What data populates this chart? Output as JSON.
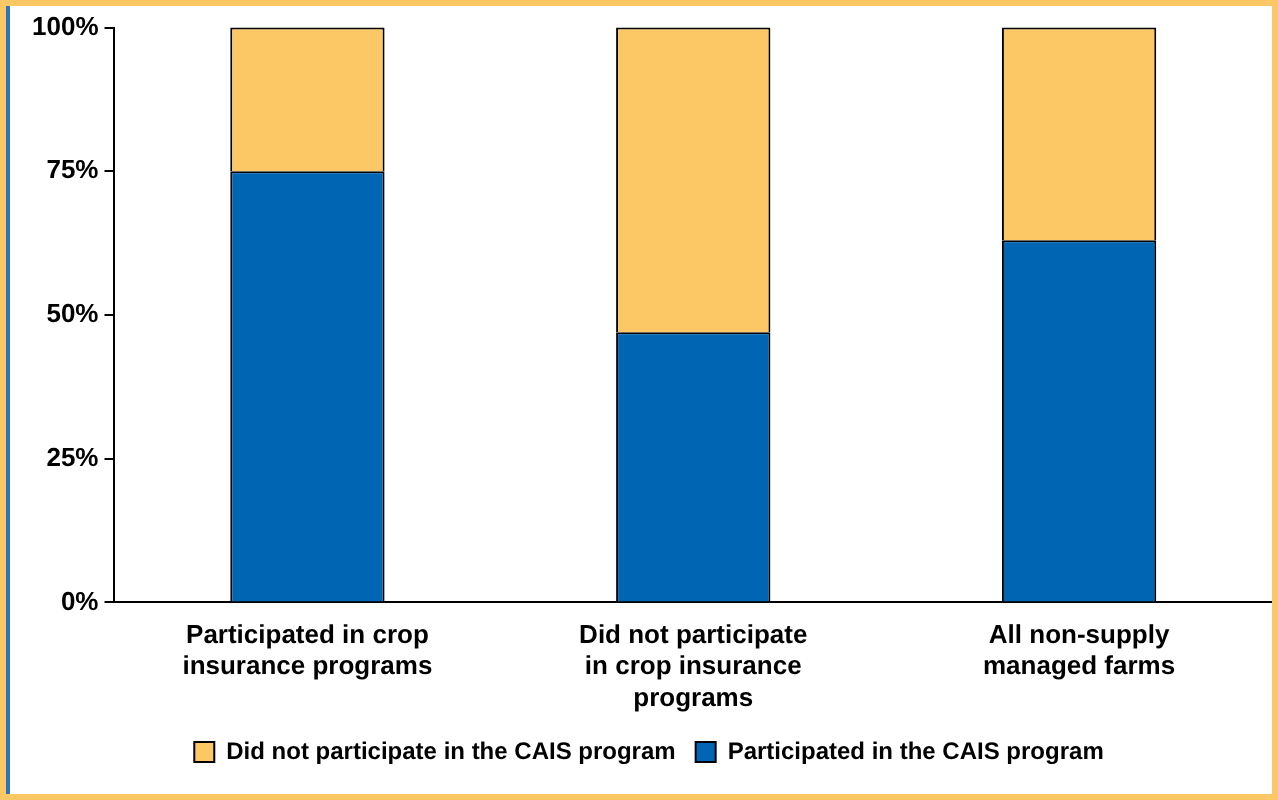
{
  "chart_data": {
    "type": "bar",
    "stacked": true,
    "categories": [
      "Participated in crop insurance programs",
      "Did not participate in crop insurance programs",
      "All non-supply managed farms"
    ],
    "series": [
      {
        "name": "Participated in the CAIS program",
        "color": "#0066b3",
        "values": [
          75,
          47,
          63
        ]
      },
      {
        "name": "Did not participate in the CAIS program",
        "color": "#fcc865",
        "values": [
          25,
          53,
          37
        ]
      }
    ],
    "ylim": [
      0,
      100
    ],
    "yticks": [
      {
        "value": 0,
        "label": "0%"
      },
      {
        "value": 25,
        "label": "25%"
      },
      {
        "value": 50,
        "label": "50%"
      },
      {
        "value": 75,
        "label": "75%"
      },
      {
        "value": 100,
        "label": "100%"
      }
    ],
    "grid": false,
    "legend": "bottom"
  }
}
